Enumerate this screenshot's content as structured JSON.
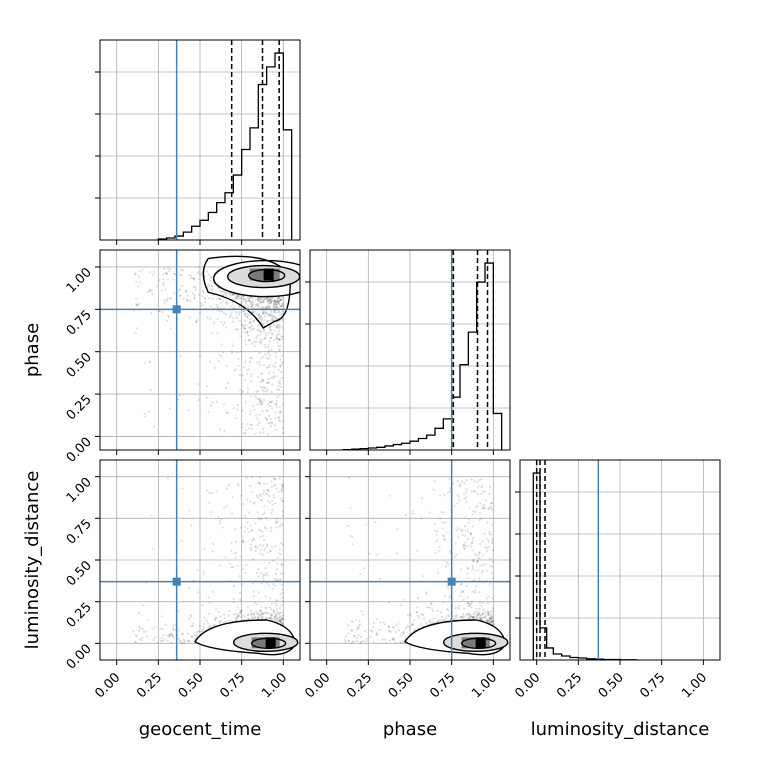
{
  "chart_data": {
    "type": "corner",
    "parameters": [
      "geocent_time",
      "phase",
      "luminosity_distance"
    ],
    "truths": {
      "geocent_time": 0.36,
      "phase": 0.75,
      "luminosity_distance": 0.37
    },
    "tick_labels": [
      "0.00",
      "0.25",
      "0.50",
      "0.75",
      "1.00"
    ],
    "grid": true,
    "truth_color": "#4682b4",
    "histogram_color": "#000000",
    "marginals": [
      {
        "parameter": "geocent_time",
        "xlim": [
          -0.1,
          1.1
        ],
        "bin_edges": [
          0.25,
          0.3,
          0.35,
          0.4,
          0.45,
          0.5,
          0.55,
          0.6,
          0.65,
          0.7,
          0.75,
          0.8,
          0.85,
          0.9,
          0.95,
          1.0,
          1.05
        ],
        "counts": [
          0.5,
          1,
          2,
          4,
          7,
          10,
          14,
          19,
          24,
          33,
          46,
          57,
          79,
          88,
          95,
          56
        ],
        "quantiles": [
          0.69,
          0.875,
          0.975
        ]
      },
      {
        "parameter": "phase",
        "xlim": [
          -0.1,
          1.1
        ],
        "bin_edges": [
          0.1,
          0.15,
          0.2,
          0.25,
          0.3,
          0.35,
          0.4,
          0.45,
          0.5,
          0.55,
          0.6,
          0.65,
          0.7,
          0.75,
          0.8,
          0.85,
          0.9,
          0.95,
          1.0,
          1.05
        ],
        "counts": [
          0.3,
          0.6,
          1,
          1.5,
          2,
          3,
          4,
          5,
          6.5,
          8.5,
          11,
          16,
          23,
          39,
          63,
          87,
          124,
          138,
          27
        ],
        "quantiles": [
          0.76,
          0.905,
          0.965
        ]
      },
      {
        "parameter": "luminosity_distance",
        "xlim": [
          -0.1,
          1.1
        ],
        "bin_edges": [
          -0.02,
          0.02,
          0.06,
          0.1,
          0.15,
          0.2,
          0.25,
          0.3,
          0.35,
          0.4,
          0.5,
          0.6
        ],
        "counts": [
          186,
          32,
          12,
          6,
          4,
          2.5,
          2,
          1.2,
          0.8,
          0.5,
          0.2
        ],
        "quantiles": [
          0.0,
          0.02,
          0.05
        ]
      }
    ],
    "joint_panels": [
      {
        "x": "geocent_time",
        "y": "phase",
        "xlim": [
          -0.1,
          1.1
        ],
        "ylim": [
          -0.08,
          1.1
        ]
      },
      {
        "x": "geocent_time",
        "y": "luminosity_distance",
        "xlim": [
          -0.1,
          1.1
        ],
        "ylim": [
          -0.1,
          1.1
        ]
      },
      {
        "x": "phase",
        "y": "luminosity_distance",
        "xlim": [
          -0.1,
          1.1
        ],
        "ylim": [
          -0.1,
          1.1
        ]
      }
    ]
  }
}
